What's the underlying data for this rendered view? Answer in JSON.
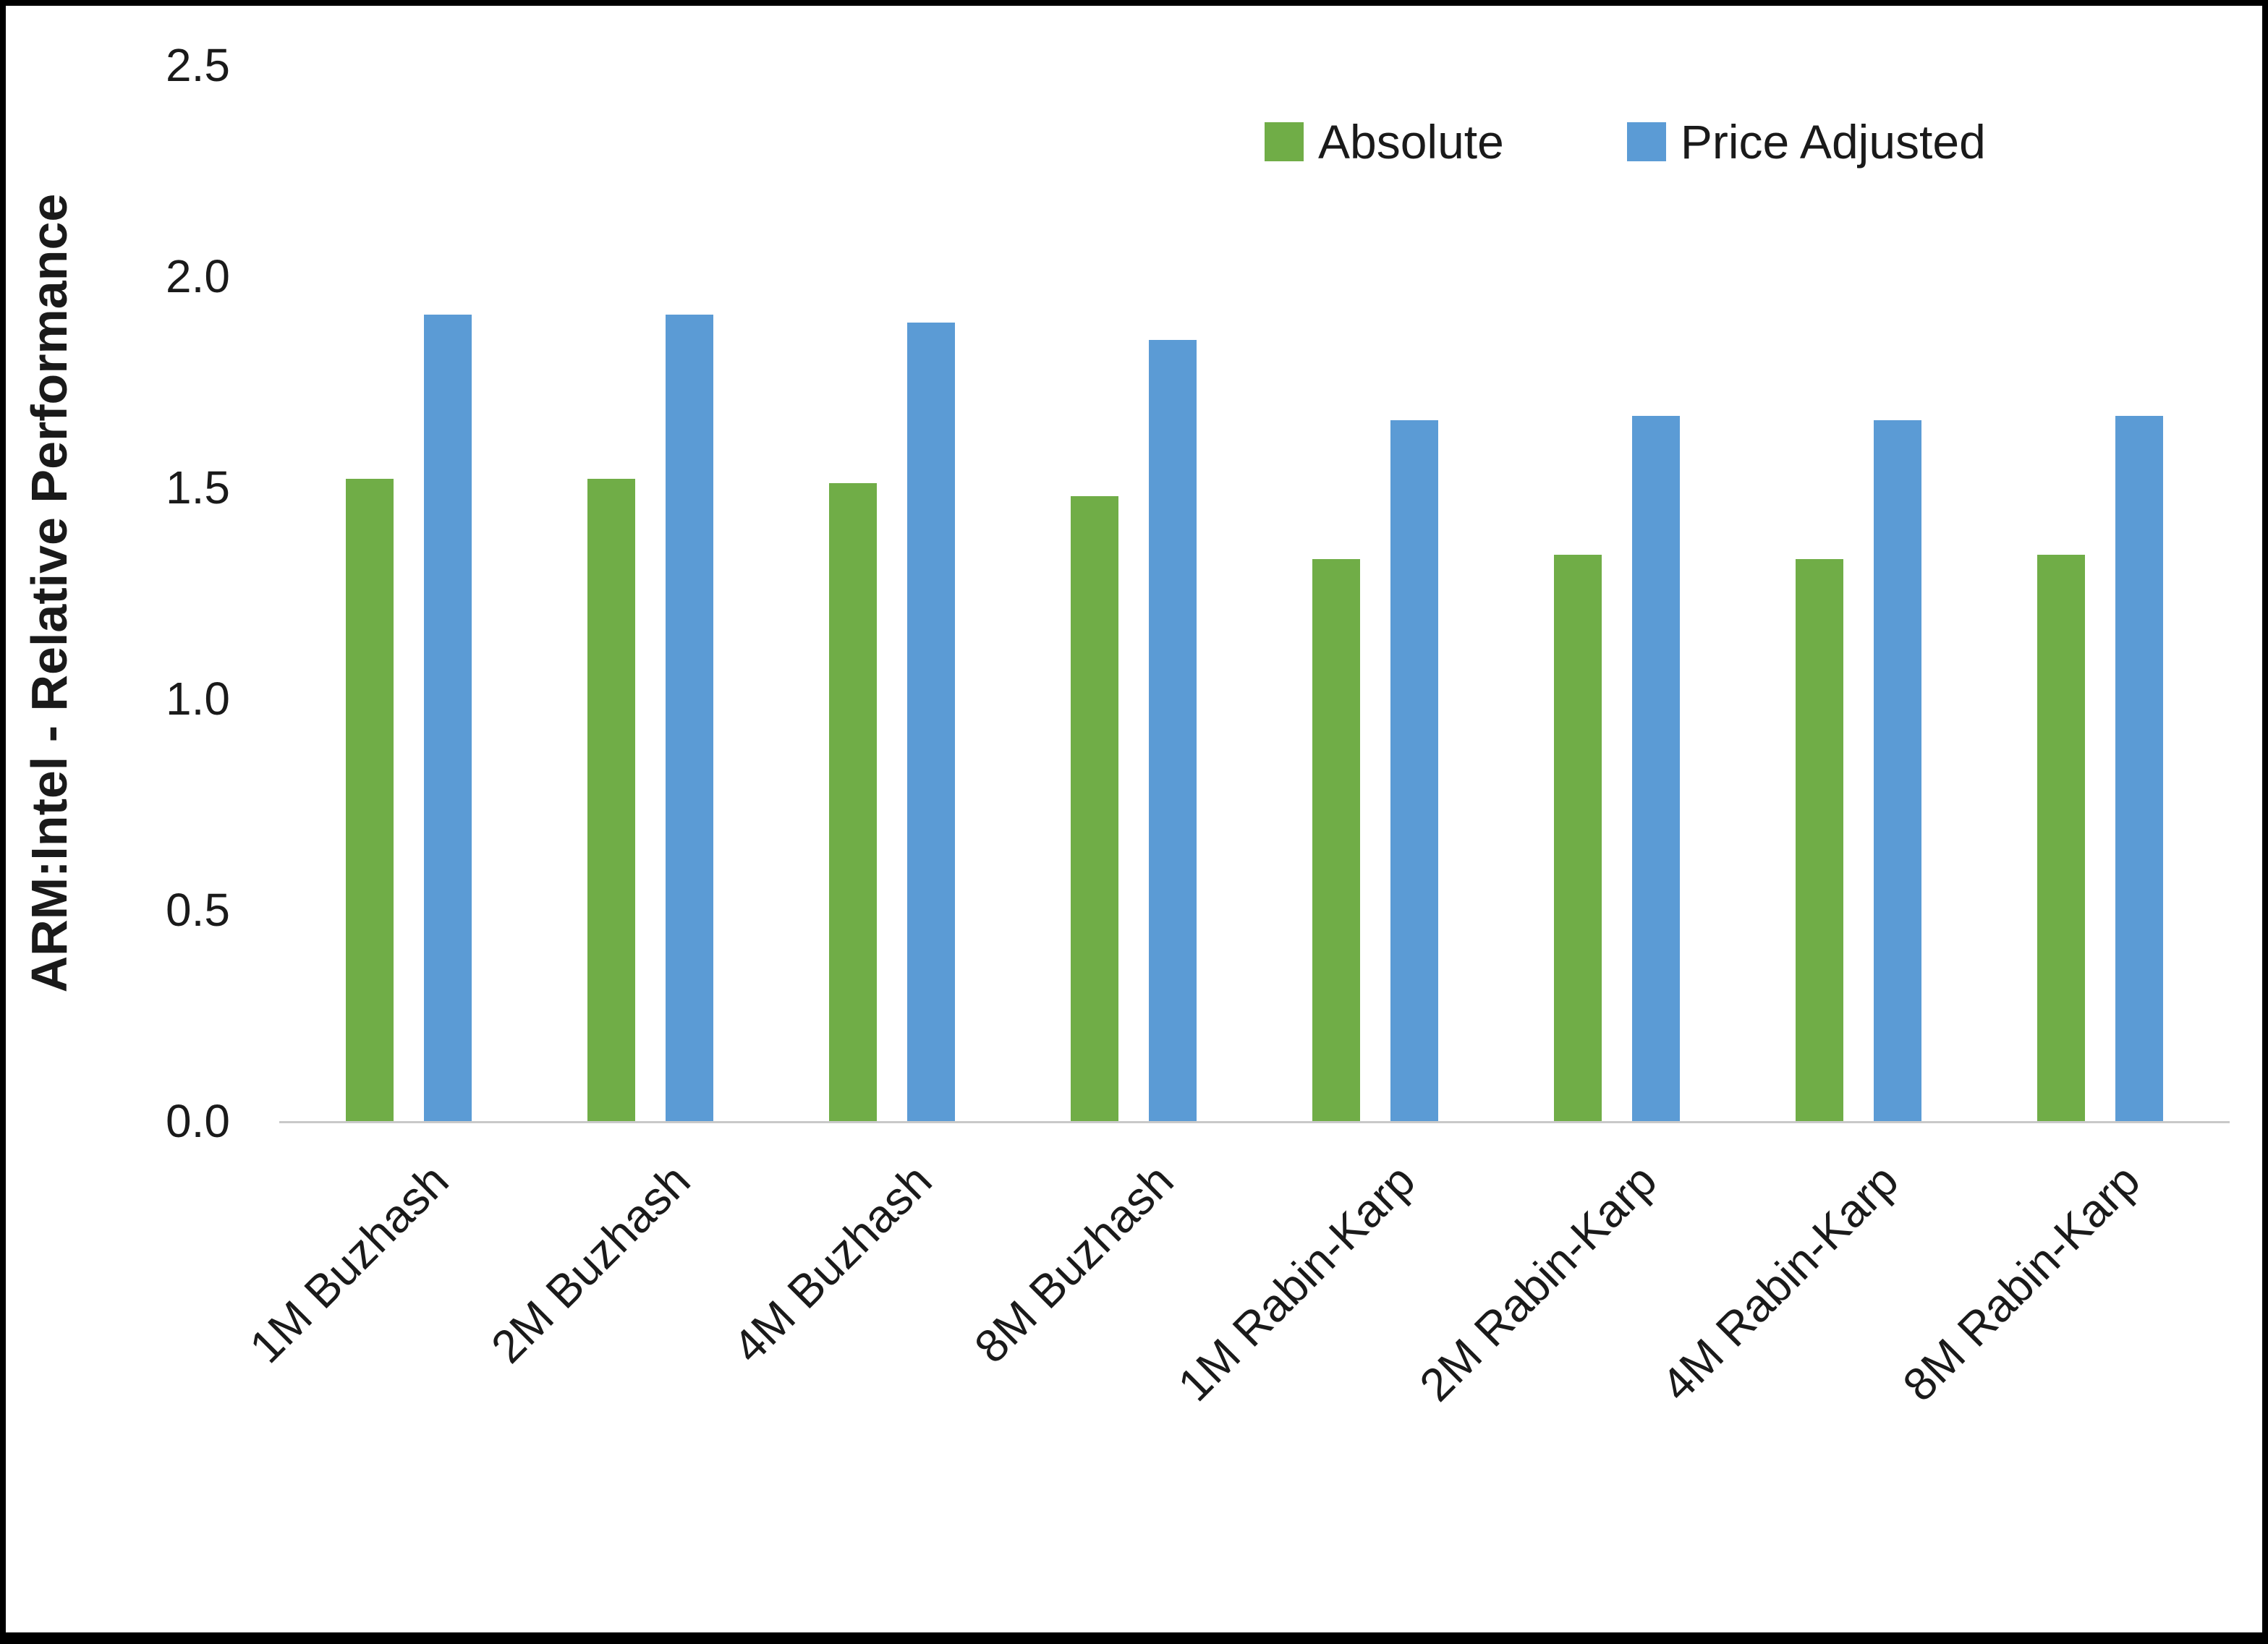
{
  "chart_data": {
    "type": "bar",
    "title": "",
    "xlabel": "",
    "ylabel": "ARM:Intel - Relative Performance",
    "ylim": [
      0,
      2.5
    ],
    "yticks": [
      "0.0",
      "0.5",
      "1.0",
      "1.5",
      "2.0",
      "2.5"
    ],
    "grid": false,
    "legend_position": "top-right",
    "categories": [
      "1M Buzhash",
      "2M Buzhash",
      "4M Buzhash",
      "8M Buzhash",
      "1M Rabin-Karp",
      "2M Rabin-Karp",
      "4M Rabin-Karp",
      "8M Rabin-Karp"
    ],
    "series": [
      {
        "name": "Absolute",
        "color": "#70AD47",
        "values": [
          1.52,
          1.52,
          1.51,
          1.48,
          1.33,
          1.34,
          1.33,
          1.34
        ]
      },
      {
        "name": "Price Adjusted",
        "color": "#5B9BD5",
        "values": [
          1.91,
          1.91,
          1.89,
          1.85,
          1.66,
          1.67,
          1.66,
          1.67
        ]
      }
    ]
  },
  "colors": {
    "absolute": "#70AD47",
    "price_adjusted": "#5B9BD5",
    "axis_line": "#c9c9c9",
    "text": "#1a1a1a",
    "frame_border": "#000000"
  }
}
